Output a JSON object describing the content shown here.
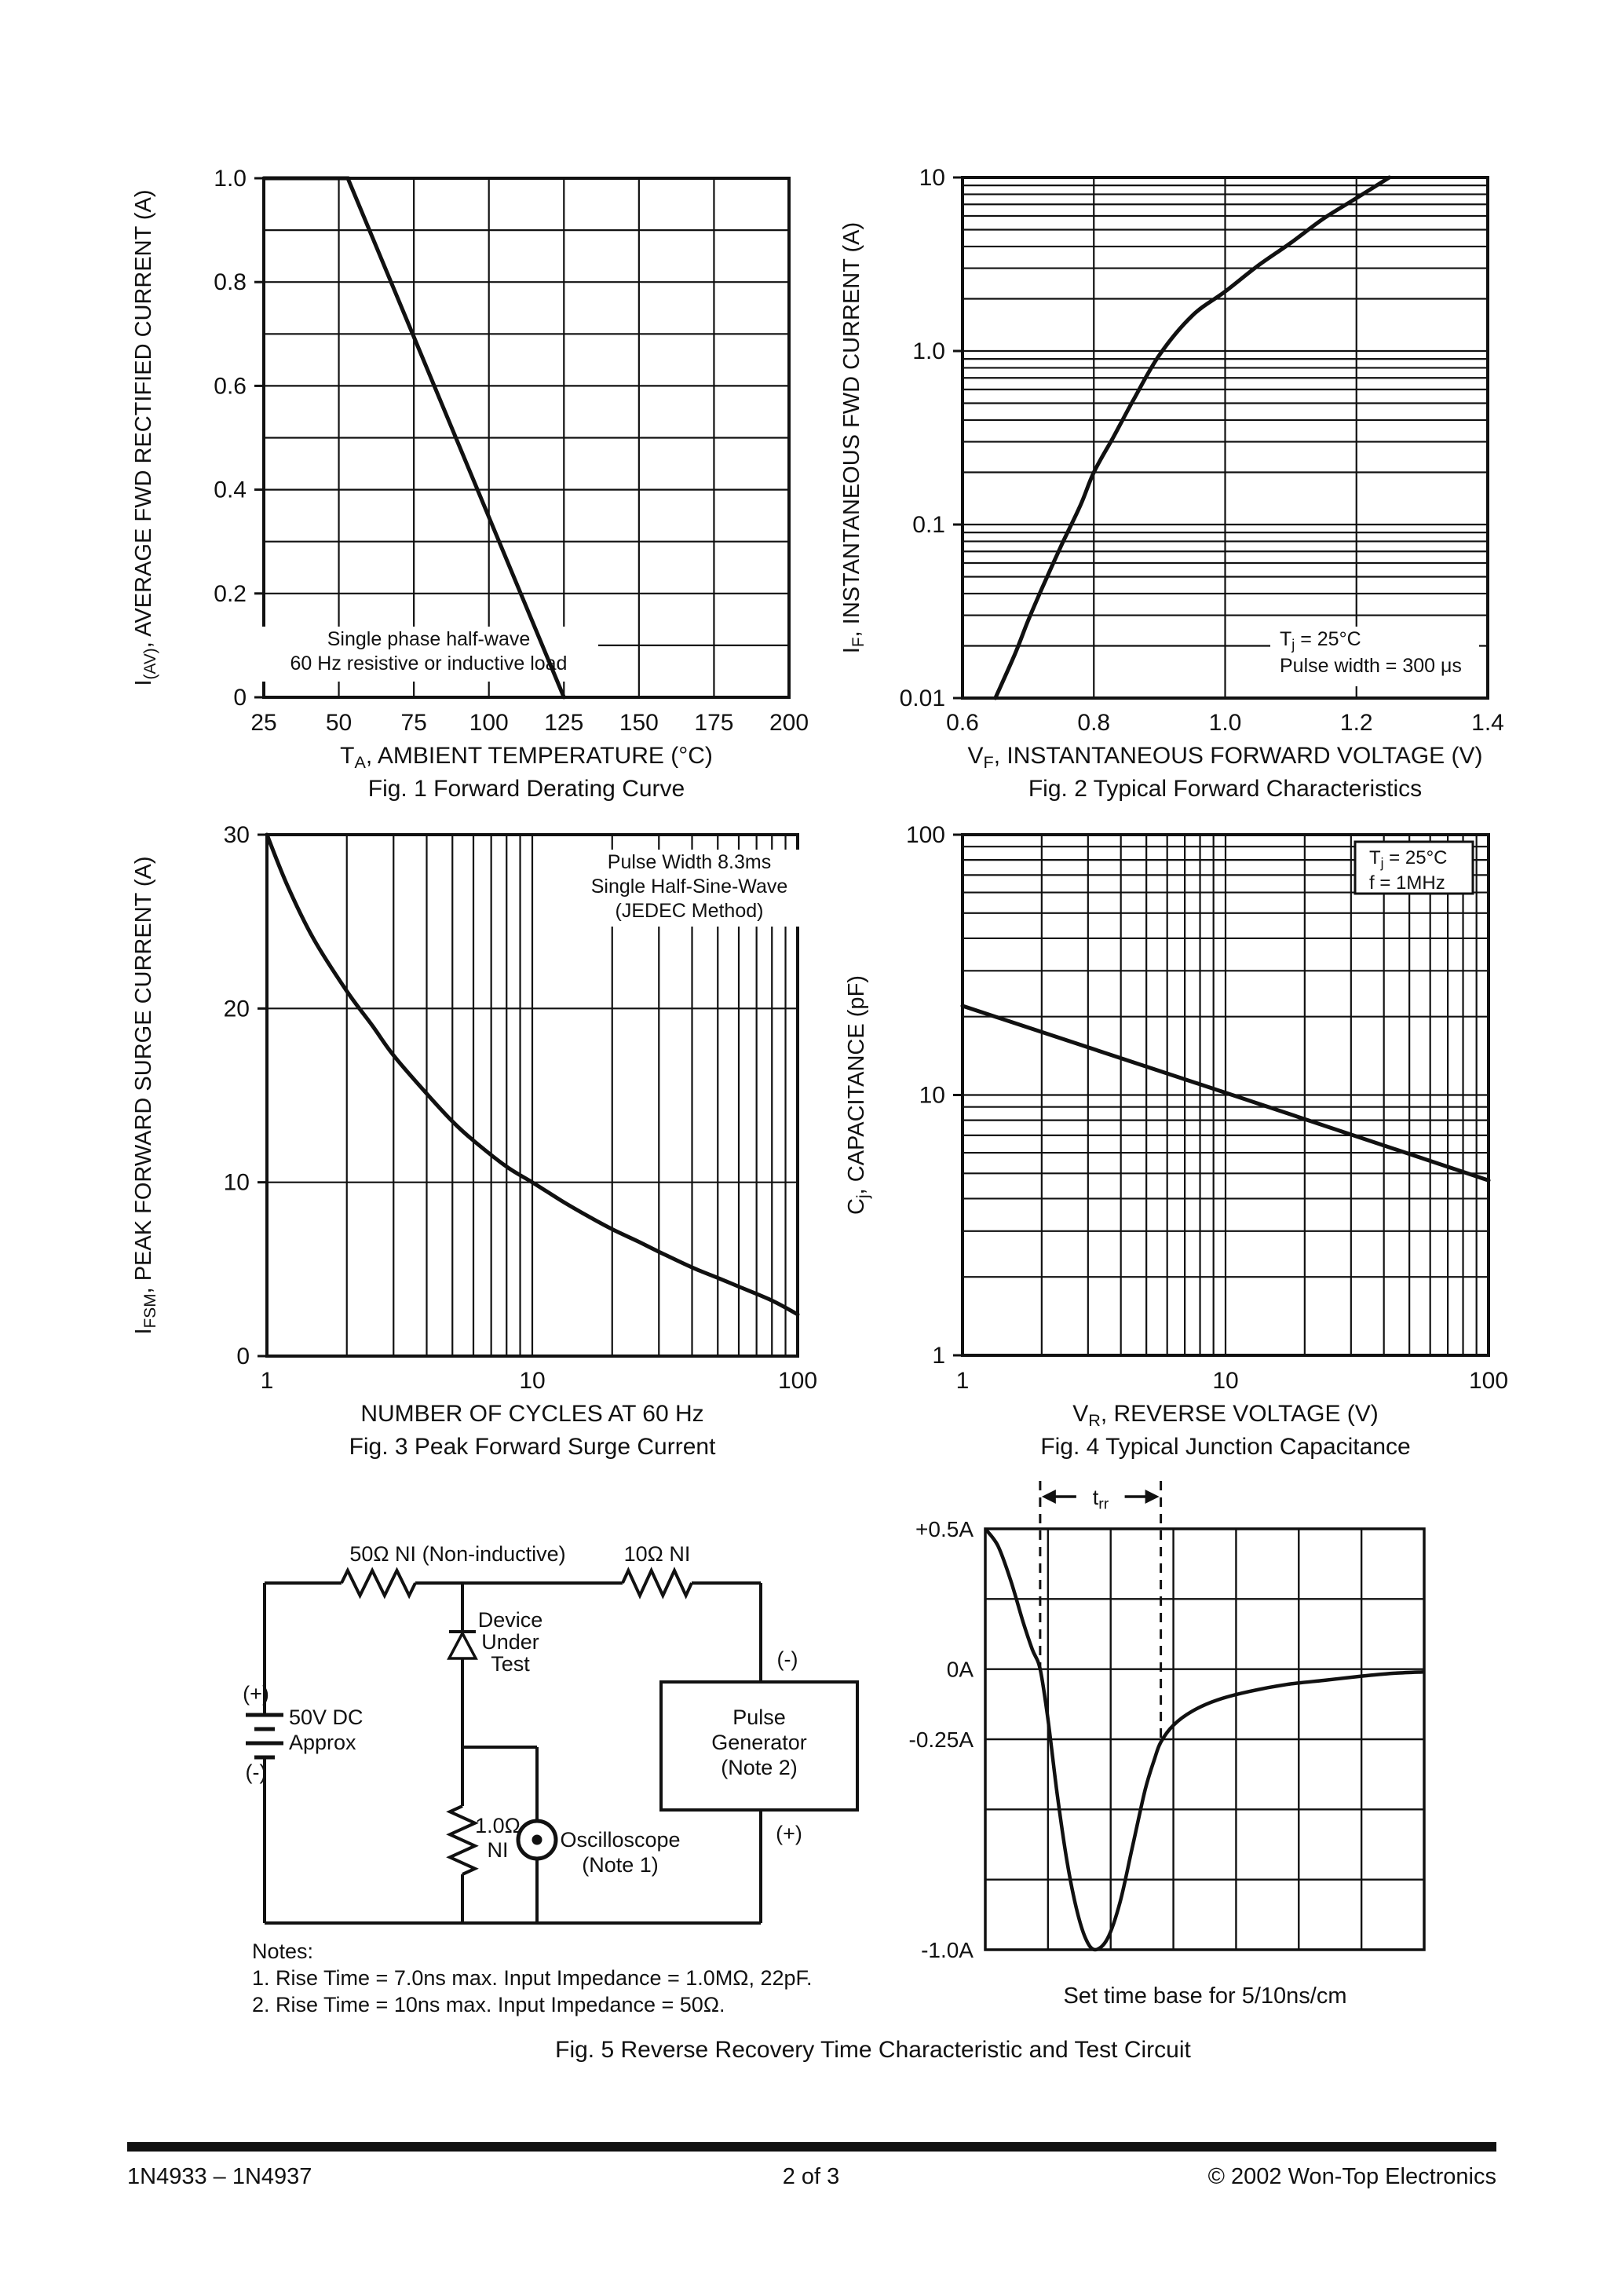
{
  "notes": {
    "title": "Notes:",
    "items": [
      "1. Rise Time = 7.0ns max. Input Impedance = 1.0MΩ, 22pF.",
      "2. Rise Time = 10ns max. Input Impedance = 50Ω."
    ]
  },
  "captions": {
    "fig5": "Fig. 5  Reverse Recovery Time Characteristic and Test Circuit"
  },
  "footer": {
    "left": "1N4933 – 1N4937",
    "center": "2 of 3",
    "right": "© 2002 Won-Top Electronics"
  },
  "ink_color": "#111111",
  "circuit": {
    "r1_label": "50Ω NI (Non-inductive)",
    "r2_label": "10Ω NI",
    "dut_label": [
      "Device",
      "Under",
      "Test"
    ],
    "battery_plus": "(+)",
    "battery_minus": "(-)",
    "battery_label": [
      "50V DC",
      "Approx"
    ],
    "r3_label": [
      "1.0Ω",
      "NI"
    ],
    "scope_label": [
      "Oscilloscope",
      "(Note 1)"
    ],
    "pulse_generator_label": [
      "Pulse",
      "Generator",
      "(Note 2)"
    ],
    "pg_minus": "(-)",
    "pg_plus": "(+)"
  },
  "chart_data": [
    {
      "id": "fig1",
      "type": "line",
      "title": "Fig. 1  Forward Derating Curve",
      "x_scale": "linear",
      "x_domain": [
        25,
        200
      ],
      "y_scale": "linear",
      "y_domain": [
        0,
        1.0
      ],
      "x_ticks": [
        [
          25,
          "25"
        ],
        [
          50,
          "50"
        ],
        [
          75,
          "75"
        ],
        [
          100,
          "100"
        ],
        [
          125,
          "125"
        ],
        [
          150,
          "150"
        ],
        [
          175,
          "175"
        ],
        [
          200,
          "200"
        ]
      ],
      "y_ticks": [
        [
          1.0,
          "1.0"
        ],
        [
          0.8,
          "0.8"
        ],
        [
          0.6,
          "0.6"
        ],
        [
          0.4,
          "0.4"
        ],
        [
          0.2,
          "0.2"
        ],
        [
          0,
          "0"
        ]
      ],
      "x_label": [
        {
          "t": "T"
        },
        {
          "t": "A",
          "s": 1
        },
        {
          "t": ", AMBIENT TEMPERATURE (°C)"
        }
      ],
      "y_label": [
        {
          "t": "I"
        },
        {
          "t": "(AV)",
          "s": 1
        },
        {
          "t": ", AVERAGE FWD RECTIFIED CURRENT (A)"
        }
      ],
      "annotation": [
        [
          {
            "t": "Single phase half-wave"
          }
        ],
        [
          {
            "t": "60 Hz resistive or inductive load"
          }
        ]
      ],
      "series": [
        {
          "name": "forward-derating",
          "smooth": false,
          "points": [
            [
              25,
              1.0
            ],
            [
              53,
              1.0
            ],
            [
              125,
              0
            ]
          ]
        }
      ]
    },
    {
      "id": "fig2",
      "type": "line",
      "title": "Fig. 2  Typical Forward Characteristics",
      "x_scale": "linear",
      "x_domain": [
        0.6,
        1.4
      ],
      "y_scale": "log",
      "y_domain": [
        0.01,
        10
      ],
      "x_ticks": [
        [
          0.6,
          "0.6"
        ],
        [
          0.8,
          "0.8"
        ],
        [
          1.0,
          "1.0"
        ],
        [
          1.2,
          "1.2"
        ],
        [
          1.4,
          "1.4"
        ]
      ],
      "y_ticks": [
        [
          10,
          "10"
        ],
        [
          1.0,
          "1.0"
        ],
        [
          0.1,
          "0.1"
        ],
        [
          0.01,
          "0.01"
        ]
      ],
      "x_label": [
        {
          "t": "V"
        },
        {
          "t": "F",
          "s": 1
        },
        {
          "t": ", INSTANTANEOUS FORWARD VOLTAGE (V)"
        }
      ],
      "y_label": [
        {
          "t": "I"
        },
        {
          "t": "F",
          "s": 1
        },
        {
          "t": ", INSTANTANEOUS FWD CURRENT (A)"
        }
      ],
      "annotation": [
        [
          {
            "t": "T"
          },
          {
            "t": "j",
            "s": 1
          },
          {
            "t": " = 25°C"
          }
        ],
        [
          {
            "t": "Pulse width = 300 μs"
          }
        ]
      ],
      "series": [
        {
          "name": "forward-characteristic",
          "smooth": true,
          "points": [
            [
              0.65,
              0.01
            ],
            [
              0.68,
              0.018
            ],
            [
              0.7,
              0.028
            ],
            [
              0.72,
              0.042
            ],
            [
              0.75,
              0.075
            ],
            [
              0.78,
              0.13
            ],
            [
              0.8,
              0.2
            ],
            [
              0.83,
              0.32
            ],
            [
              0.86,
              0.52
            ],
            [
              0.9,
              0.95
            ],
            [
              0.95,
              1.6
            ],
            [
              1.0,
              2.2
            ],
            [
              1.05,
              3.1
            ],
            [
              1.1,
              4.2
            ],
            [
              1.15,
              5.8
            ],
            [
              1.2,
              7.6
            ],
            [
              1.25,
              10
            ]
          ]
        }
      ]
    },
    {
      "id": "fig3",
      "type": "line",
      "title": "Fig. 3  Peak Forward Surge Current",
      "x_scale": "log",
      "x_domain": [
        1,
        100
      ],
      "y_scale": "linear",
      "y_domain": [
        0,
        30
      ],
      "x_ticks": [
        [
          1,
          "1"
        ],
        [
          10,
          "10"
        ],
        [
          100,
          "100"
        ]
      ],
      "y_ticks": [
        [
          30,
          "30"
        ],
        [
          20,
          "20"
        ],
        [
          10,
          "10"
        ],
        [
          0,
          "0"
        ]
      ],
      "x_label": [
        {
          "t": "NUMBER OF CYCLES AT 60 Hz"
        }
      ],
      "y_label": [
        {
          "t": "I"
        },
        {
          "t": "FSM",
          "s": 1
        },
        {
          "t": ", PEAK FORWARD SURGE CURRENT (A)"
        }
      ],
      "annotation": [
        [
          {
            "t": "Pulse Width 8.3ms"
          }
        ],
        [
          {
            "t": "Single Half-Sine-Wave"
          }
        ],
        [
          {
            "t": "(JEDEC Method)"
          }
        ]
      ],
      "series": [
        {
          "name": "surge-current",
          "smooth": true,
          "points": [
            [
              1,
              30
            ],
            [
              1.2,
              27
            ],
            [
              1.5,
              24
            ],
            [
              2,
              21
            ],
            [
              2.5,
              19
            ],
            [
              3,
              17.3
            ],
            [
              4,
              15.1
            ],
            [
              5,
              13.5
            ],
            [
              6,
              12.4
            ],
            [
              8,
              10.9
            ],
            [
              10,
              10
            ],
            [
              13,
              8.9
            ],
            [
              16,
              8.1
            ],
            [
              20,
              7.3
            ],
            [
              25,
              6.6
            ],
            [
              30,
              6.0
            ],
            [
              40,
              5.1
            ],
            [
              50,
              4.5
            ],
            [
              60,
              4.0
            ],
            [
              80,
              3.2
            ],
            [
              100,
              2.4
            ]
          ]
        }
      ]
    },
    {
      "id": "fig4",
      "type": "line",
      "title": "Fig. 4  Typical Junction Capacitance",
      "x_scale": "log",
      "x_domain": [
        1,
        100
      ],
      "y_scale": "log",
      "y_domain": [
        1,
        100
      ],
      "x_ticks": [
        [
          1,
          "1"
        ],
        [
          10,
          "10"
        ],
        [
          100,
          "100"
        ]
      ],
      "y_ticks": [
        [
          100,
          "100"
        ],
        [
          10,
          "10"
        ],
        [
          1,
          "1"
        ]
      ],
      "x_label": [
        {
          "t": "V"
        },
        {
          "t": "R",
          "s": 1
        },
        {
          "t": ", REVERSE VOLTAGE (V)"
        }
      ],
      "y_label": [
        {
          "t": "C"
        },
        {
          "t": "j",
          "s": 1
        },
        {
          "t": ", CAPACITANCE (pF)"
        }
      ],
      "annotation": [
        [
          {
            "t": "T"
          },
          {
            "t": "j",
            "s": 1
          },
          {
            "t": " = 25°C"
          }
        ],
        [
          {
            "t": "f = 1MHz"
          }
        ]
      ],
      "series": [
        {
          "name": "junction-capacitance",
          "smooth": false,
          "points": [
            [
              1,
              22
            ],
            [
              10,
              10.2
            ],
            [
              100,
              4.7
            ]
          ]
        }
      ]
    },
    {
      "id": "fig5-waveform",
      "type": "line",
      "title": "Set time base for 5/10ns/cm",
      "x_scale": "linear",
      "x_domain": [
        0,
        7
      ],
      "y_scale": "linear",
      "y_domain": [
        -1.0,
        0.5
      ],
      "x_ticks": [],
      "y_ticks": [
        [
          0.5,
          "+0.5A"
        ],
        [
          0,
          "0A"
        ],
        [
          -0.25,
          "-0.25A"
        ],
        [
          -1.0,
          "-1.0A"
        ]
      ],
      "trr_label": [
        {
          "t": "t"
        },
        {
          "t": "rr",
          "s": 1
        }
      ],
      "trr_span": [
        0.875,
        2.8
      ],
      "series": [
        {
          "name": "reverse-recovery",
          "smooth": true,
          "points": [
            [
              0,
              0.5
            ],
            [
              0.2,
              0.44
            ],
            [
              0.4,
              0.32
            ],
            [
              0.6,
              0.17
            ],
            [
              0.75,
              0.07
            ],
            [
              0.875,
              0
            ],
            [
              1.0,
              -0.18
            ],
            [
              1.15,
              -0.45
            ],
            [
              1.3,
              -0.68
            ],
            [
              1.45,
              -0.85
            ],
            [
              1.6,
              -0.96
            ],
            [
              1.75,
              -1.0
            ],
            [
              1.95,
              -0.96
            ],
            [
              2.15,
              -0.83
            ],
            [
              2.35,
              -0.63
            ],
            [
              2.55,
              -0.43
            ],
            [
              2.7,
              -0.32
            ],
            [
              2.8,
              -0.26
            ],
            [
              3.0,
              -0.2
            ],
            [
              3.3,
              -0.15
            ],
            [
              3.7,
              -0.11
            ],
            [
              4.2,
              -0.08
            ],
            [
              4.8,
              -0.055
            ],
            [
              5.4,
              -0.04
            ],
            [
              6.0,
              -0.025
            ],
            [
              6.5,
              -0.015
            ],
            [
              7.0,
              -0.01
            ]
          ]
        }
      ]
    }
  ]
}
